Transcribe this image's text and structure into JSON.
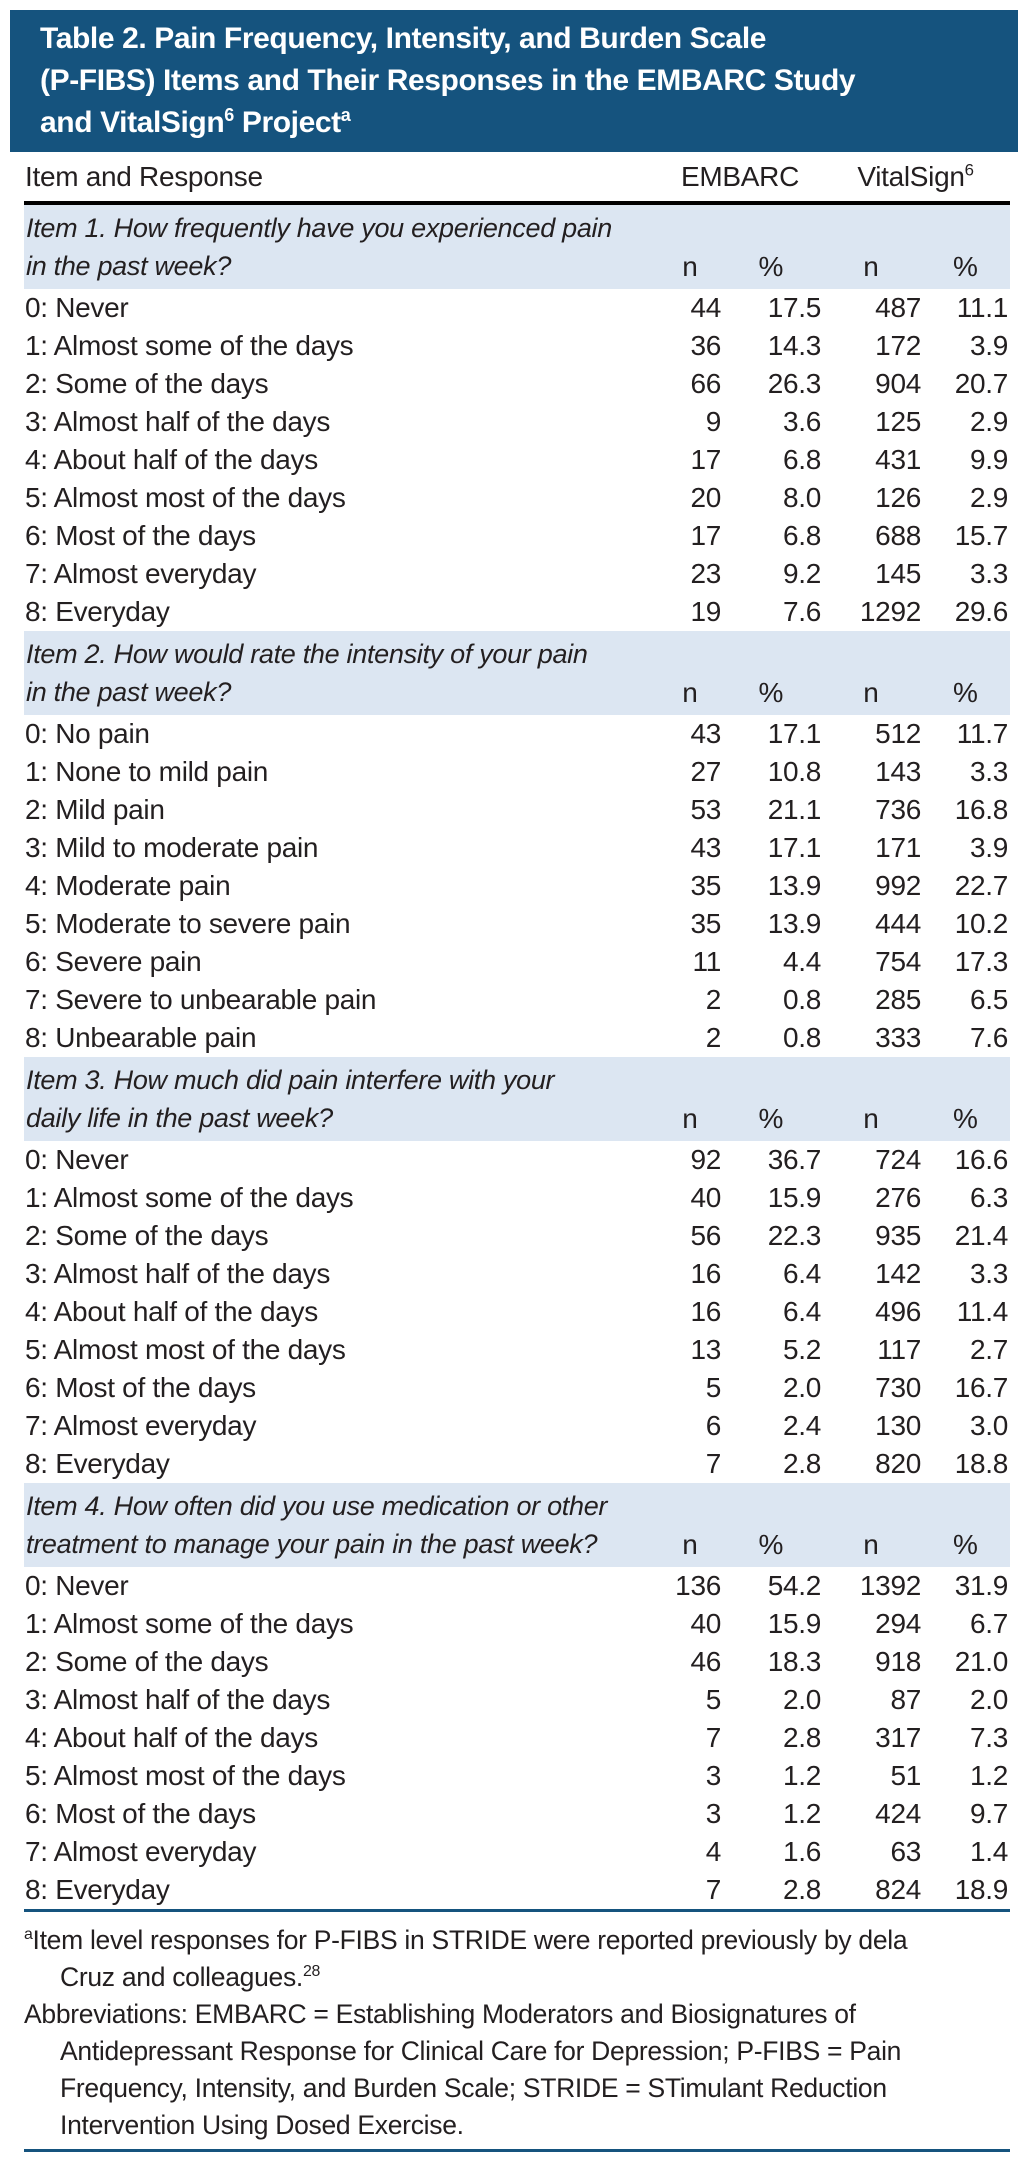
{
  "colors": {
    "navy": "#15537e",
    "band": "#dce6f2",
    "text": "#231f20",
    "header_rule": "#000000",
    "title_text": "#ffffff"
  },
  "header": {
    "line1": "Table 2. Pain Frequency, Intensity, and Burden Scale",
    "line2": "(P-FIBS) Items and Their Responses in the EMBARC Study",
    "line3_pre": "and VitalSign",
    "line3_sup1": "6",
    "line3_mid": " Project",
    "line3_sup2": "a"
  },
  "columns": {
    "item_label": "Item and Response",
    "embarc": "EMBARC",
    "vitalsign": "VitalSign",
    "vitalsign_sup": "6",
    "sub": [
      "n",
      "%",
      "n",
      "%"
    ]
  },
  "table": {
    "items": [
      {
        "q_line1": "Item 1. How frequently have you experienced pain",
        "q_line2": "in the past week?",
        "responses": [
          {
            "label": "0: Never",
            "values": [
              "44",
              "17.5",
              "487",
              "11.1"
            ]
          },
          {
            "label": "1: Almost some of the days",
            "values": [
              "36",
              "14.3",
              "172",
              "3.9"
            ]
          },
          {
            "label": "2: Some of the days",
            "values": [
              "66",
              "26.3",
              "904",
              "20.7"
            ]
          },
          {
            "label": "3: Almost half of the days",
            "values": [
              "9",
              "3.6",
              "125",
              "2.9"
            ]
          },
          {
            "label": "4: About half of the days",
            "values": [
              "17",
              "6.8",
              "431",
              "9.9"
            ]
          },
          {
            "label": "5: Almost most of the days",
            "values": [
              "20",
              "8.0",
              "126",
              "2.9"
            ]
          },
          {
            "label": "6: Most of the days",
            "values": [
              "17",
              "6.8",
              "688",
              "15.7"
            ]
          },
          {
            "label": "7: Almost everyday",
            "values": [
              "23",
              "9.2",
              "145",
              "3.3"
            ]
          },
          {
            "label": "8: Everyday",
            "values": [
              "19",
              "7.6",
              "1292",
              "29.6"
            ]
          }
        ]
      },
      {
        "q_line1": "Item 2. How would rate the intensity of your pain",
        "q_line2": "in the past week?",
        "responses": [
          {
            "label": "0: No pain",
            "values": [
              "43",
              "17.1",
              "512",
              "11.7"
            ]
          },
          {
            "label": "1: None to mild pain",
            "values": [
              "27",
              "10.8",
              "143",
              "3.3"
            ]
          },
          {
            "label": "2: Mild pain",
            "values": [
              "53",
              "21.1",
              "736",
              "16.8"
            ]
          },
          {
            "label": "3: Mild to moderate pain",
            "values": [
              "43",
              "17.1",
              "171",
              "3.9"
            ]
          },
          {
            "label": "4: Moderate pain",
            "values": [
              "35",
              "13.9",
              "992",
              "22.7"
            ]
          },
          {
            "label": "5: Moderate to severe pain",
            "values": [
              "35",
              "13.9",
              "444",
              "10.2"
            ]
          },
          {
            "label": "6: Severe pain",
            "values": [
              "11",
              "4.4",
              "754",
              "17.3"
            ]
          },
          {
            "label": "7: Severe to unbearable pain",
            "values": [
              "2",
              "0.8",
              "285",
              "6.5"
            ]
          },
          {
            "label": "8: Unbearable pain",
            "values": [
              "2",
              "0.8",
              "333",
              "7.6"
            ]
          }
        ]
      },
      {
        "q_line1": "Item 3. How much did pain interfere with your",
        "q_line2": "daily life in the past week?",
        "responses": [
          {
            "label": "0: Never",
            "values": [
              "92",
              "36.7",
              "724",
              "16.6"
            ]
          },
          {
            "label": "1: Almost some of the days",
            "values": [
              "40",
              "15.9",
              "276",
              "6.3"
            ]
          },
          {
            "label": "2: Some of the days",
            "values": [
              "56",
              "22.3",
              "935",
              "21.4"
            ]
          },
          {
            "label": "3: Almost half of the days",
            "values": [
              "16",
              "6.4",
              "142",
              "3.3"
            ]
          },
          {
            "label": "4: About half of the days",
            "values": [
              "16",
              "6.4",
              "496",
              "11.4"
            ]
          },
          {
            "label": "5: Almost most of the days",
            "values": [
              "13",
              "5.2",
              "117",
              "2.7"
            ]
          },
          {
            "label": "6: Most of the days",
            "values": [
              "5",
              "2.0",
              "730",
              "16.7"
            ]
          },
          {
            "label": "7: Almost everyday",
            "values": [
              "6",
              "2.4",
              "130",
              "3.0"
            ]
          },
          {
            "label": "8: Everyday",
            "values": [
              "7",
              "2.8",
              "820",
              "18.8"
            ]
          }
        ]
      },
      {
        "q_line1": "Item 4. How often did you use medication or other",
        "q_line2": "treatment to manage your pain in the past week?",
        "responses": [
          {
            "label": "0: Never",
            "values": [
              "136",
              "54.2",
              "1392",
              "31.9"
            ]
          },
          {
            "label": "1: Almost some of the days",
            "values": [
              "40",
              "15.9",
              "294",
              "6.7"
            ]
          },
          {
            "label": "2: Some of the days",
            "values": [
              "46",
              "18.3",
              "918",
              "21.0"
            ]
          },
          {
            "label": "3: Almost half of the days",
            "values": [
              "5",
              "2.0",
              "87",
              "2.0"
            ]
          },
          {
            "label": "4: About half of the days",
            "values": [
              "7",
              "2.8",
              "317",
              "7.3"
            ]
          },
          {
            "label": "5: Almost most of the days",
            "values": [
              "3",
              "1.2",
              "51",
              "1.2"
            ]
          },
          {
            "label": "6: Most of the days",
            "values": [
              "3",
              "1.2",
              "424",
              "9.7"
            ]
          },
          {
            "label": "7: Almost everyday",
            "values": [
              "4",
              "1.6",
              "63",
              "1.4"
            ]
          },
          {
            "label": "8: Everyday",
            "values": [
              "7",
              "2.8",
              "824",
              "18.9"
            ]
          }
        ]
      }
    ]
  },
  "footnotes": {
    "a": {
      "sup": "a",
      "line1": "Item level responses for P-FIBS in STRIDE were reported previously by dela",
      "line2": "Cruz and colleagues.",
      "line2_sup": "28"
    },
    "abbreviations": {
      "lines": [
        "Abbreviations: EMBARC = Establishing Moderators and Biosignatures of",
        "Antidepressant Response for Clinical Care for Depression; P-FIBS = Pain",
        "Frequency, Intensity, and Burden Scale; STRIDE = STimulant Reduction",
        "Intervention Using Dosed Exercise."
      ]
    }
  }
}
